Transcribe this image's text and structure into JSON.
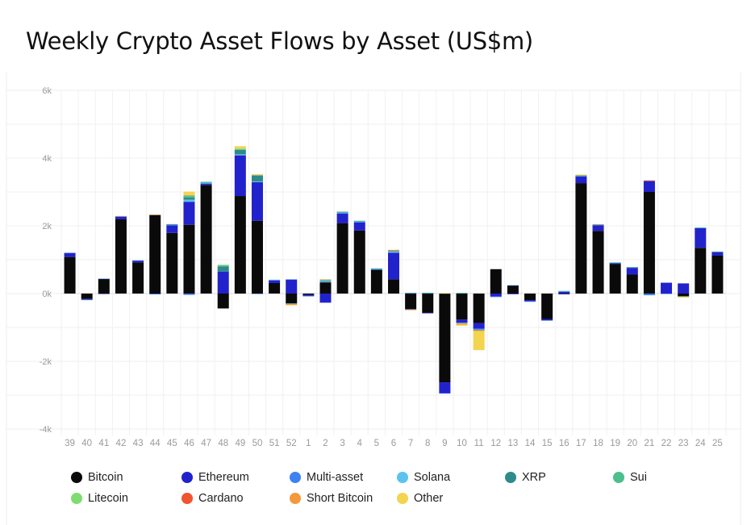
{
  "chart_data": {
    "type": "bar",
    "stacked": true,
    "title": "Weekly Crypto Asset Flows by Asset (US$m)",
    "xlabel": "",
    "ylabel": "",
    "ylim": [
      -4000,
      6000
    ],
    "yticks": [
      -4000,
      -2000,
      0,
      2000,
      4000,
      6000
    ],
    "ytick_labels": [
      "-4k",
      "-2k",
      "0k",
      "2k",
      "4k",
      "6k"
    ],
    "grid": true,
    "legend_position": "bottom",
    "categories": [
      "39",
      "40",
      "41",
      "42",
      "43",
      "44",
      "45",
      "46",
      "47",
      "48",
      "49",
      "50",
      "51",
      "52",
      "1",
      "2",
      "3",
      "4",
      "5",
      "6",
      "7",
      "8",
      "9",
      "10",
      "11",
      "12",
      "13",
      "14",
      "15",
      "16",
      "17",
      "18",
      "19",
      "20",
      "21",
      "22",
      "23",
      "24",
      "25"
    ],
    "series": [
      {
        "name": "Bitcoin",
        "color": "#0a0a0a",
        "values": [
          1080,
          -160,
          430,
          2190,
          920,
          2320,
          1790,
          2030,
          3200,
          -440,
          2880,
          2150,
          310,
          -290,
          -40,
          330,
          2080,
          1860,
          700,
          420,
          -460,
          -570,
          -2620,
          -770,
          -870,
          720,
          240,
          -190,
          -750,
          -20,
          3260,
          1850,
          870,
          560,
          3000,
          0,
          -80,
          1350,
          1120
        ]
      },
      {
        "name": "Ethereum",
        "color": "#2222cc",
        "values": [
          110,
          -20,
          -10,
          80,
          50,
          -10,
          220,
          680,
          40,
          650,
          1200,
          1140,
          80,
          410,
          -30,
          -270,
          280,
          240,
          10,
          780,
          -10,
          -10,
          -320,
          -90,
          -170,
          -90,
          -20,
          -40,
          -40,
          50,
          200,
          170,
          30,
          200,
          320,
          320,
          300,
          580,
          100
        ]
      },
      {
        "name": "Multi-asset",
        "color": "#3d82f0",
        "values": [
          15,
          -5,
          10,
          10,
          10,
          -5,
          20,
          -40,
          10,
          0,
          10,
          -10,
          10,
          10,
          -5,
          20,
          20,
          20,
          10,
          20,
          10,
          10,
          -10,
          -10,
          -20,
          -5,
          5,
          -10,
          -10,
          20,
          10,
          10,
          10,
          10,
          -50,
          -10,
          -10,
          10,
          10
        ]
      },
      {
        "name": "Solana",
        "color": "#5bc3ee",
        "values": [
          0,
          0,
          0,
          0,
          0,
          0,
          0,
          60,
          20,
          0,
          20,
          20,
          10,
          -5,
          0,
          20,
          10,
          10,
          5,
          20,
          0,
          0,
          0,
          -10,
          -10,
          0,
          0,
          0,
          0,
          10,
          5,
          5,
          5,
          5,
          0,
          0,
          0,
          5,
          5
        ]
      },
      {
        "name": "XRP",
        "color": "#2e8b8b",
        "values": [
          0,
          0,
          0,
          0,
          0,
          0,
          20,
          70,
          10,
          150,
          130,
          170,
          0,
          -10,
          0,
          20,
          20,
          10,
          10,
          20,
          10,
          10,
          0,
          10,
          -10,
          0,
          0,
          0,
          0,
          0,
          10,
          0,
          0,
          5,
          0,
          0,
          0,
          0,
          5
        ]
      },
      {
        "name": "Sui",
        "color": "#4cbf8c",
        "values": [
          0,
          0,
          0,
          0,
          0,
          0,
          0,
          50,
          20,
          30,
          20,
          20,
          0,
          0,
          0,
          10,
          10,
          10,
          10,
          10,
          0,
          5,
          0,
          10,
          0,
          0,
          0,
          0,
          0,
          0,
          5,
          5,
          5,
          0,
          0,
          0,
          0,
          5,
          0
        ]
      },
      {
        "name": "Litecoin",
        "color": "#7fdc70",
        "values": [
          0,
          0,
          0,
          0,
          0,
          0,
          0,
          0,
          0,
          20,
          20,
          0,
          0,
          0,
          0,
          10,
          0,
          0,
          0,
          0,
          0,
          0,
          0,
          0,
          0,
          0,
          0,
          0,
          0,
          0,
          0,
          0,
          0,
          0,
          0,
          0,
          0,
          0,
          0
        ]
      },
      {
        "name": "Cardano",
        "color": "#ee5530",
        "values": [
          0,
          0,
          0,
          0,
          0,
          0,
          0,
          0,
          0,
          0,
          0,
          0,
          0,
          0,
          0,
          0,
          0,
          0,
          0,
          10,
          0,
          0,
          0,
          0,
          0,
          0,
          0,
          0,
          0,
          0,
          0,
          0,
          0,
          0,
          20,
          0,
          0,
          0,
          0
        ]
      },
      {
        "name": "Short Bitcoin",
        "color": "#f5983a",
        "values": [
          0,
          0,
          0,
          10,
          0,
          10,
          0,
          20,
          0,
          0,
          0,
          10,
          0,
          -30,
          0,
          10,
          0,
          0,
          0,
          10,
          -20,
          0,
          0,
          -40,
          -30,
          0,
          0,
          0,
          0,
          0,
          10,
          10,
          0,
          0,
          0,
          0,
          0,
          0,
          0
        ]
      },
      {
        "name": "Other",
        "color": "#f2d44e",
        "values": [
          0,
          0,
          0,
          0,
          0,
          0,
          0,
          100,
          0,
          0,
          70,
          10,
          0,
          -10,
          0,
          0,
          0,
          0,
          0,
          0,
          0,
          0,
          10,
          -30,
          -560,
          0,
          0,
          0,
          0,
          0,
          10,
          0,
          0,
          0,
          0,
          0,
          -30,
          0,
          0
        ]
      }
    ]
  }
}
